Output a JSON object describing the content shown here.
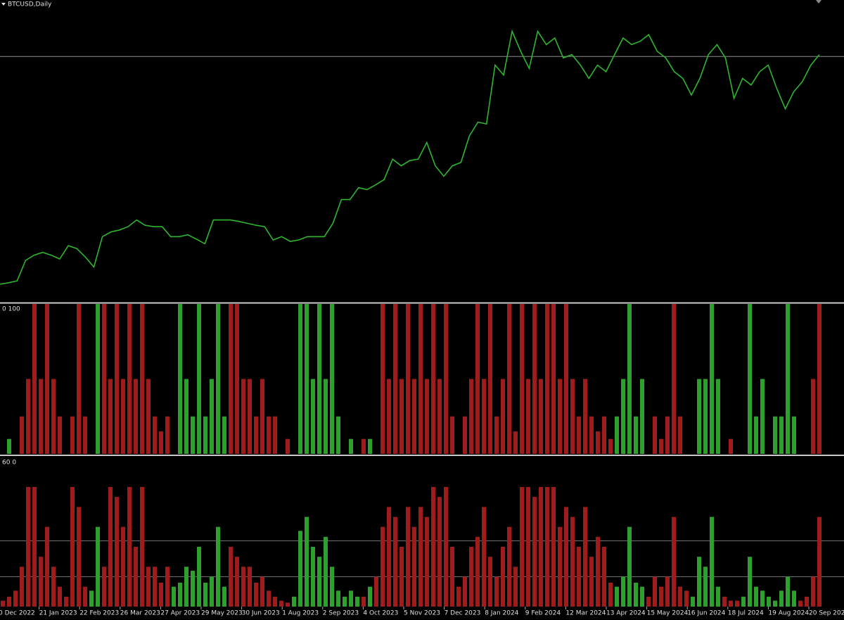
{
  "time_axis": [
    "0 Dec 2022",
    "21 Jan 2023",
    "22 Feb 2023",
    "26 Mar 2023",
    "27 Apr 2023",
    "29 May 2023",
    "30 Jun 2023",
    "1 Aug 2023",
    "2 Sep 2023",
    "4 Oct 2023",
    "5 Nov 2023",
    "7 Dec 2023",
    "8 Jan 2024",
    "9 Feb 2024",
    "12 Mar 2024",
    "13 Apr 2024",
    "15 May 2024",
    "16 Jun 2024",
    "18 Jul 2024",
    "19 Aug 2024",
    "20 Sep 2024"
  ],
  "chart_data": [
    {
      "type": "line",
      "title": "BTCUSD,Daily",
      "color": "#2fb52f",
      "ylim": [
        15000,
        76000
      ],
      "hline": 65000,
      "values": [
        17100,
        17400,
        17800,
        22100,
        23200,
        23800,
        23200,
        22400,
        25200,
        24600,
        22800,
        20700,
        27100,
        28100,
        28500,
        29200,
        30600,
        29500,
        29200,
        29200,
        27100,
        27100,
        27500,
        26600,
        25600,
        30600,
        30600,
        30600,
        30300,
        29900,
        29500,
        29200,
        26400,
        27100,
        26100,
        26400,
        27100,
        27100,
        27100,
        29900,
        34900,
        34900,
        37400,
        37000,
        38000,
        39100,
        43400,
        42000,
        43100,
        43400,
        46900,
        42000,
        39800,
        42000,
        42700,
        48300,
        51200,
        50800,
        63200,
        61100,
        70300,
        66100,
        62500,
        70300,
        67500,
        68900,
        64700,
        65400,
        63200,
        60400,
        63200,
        61800,
        65400,
        68900,
        67500,
        68200,
        69600,
        66100,
        64700,
        61800,
        60400,
        56900,
        60400,
        65400,
        67500,
        64700,
        56200,
        60400,
        59000,
        61800,
        63200,
        58300,
        54000,
        57600,
        59700,
        63200,
        65400
      ]
    },
    {
      "type": "bar",
      "label": "0 100",
      "ylim": [
        0,
        100
      ],
      "series": [
        {
          "color": "#2ea02e",
          "values": [
            null,
            10,
            null,
            null,
            null,
            null,
            null,
            null,
            null,
            null,
            null,
            null,
            null,
            null,
            null,
            100,
            null,
            null,
            null,
            null,
            null,
            null,
            null,
            null,
            null,
            null,
            null,
            null,
            100,
            50,
            25,
            100,
            25,
            50,
            100,
            25,
            null,
            null,
            null,
            null,
            null,
            null,
            null,
            null,
            null,
            null,
            null,
            100,
            100,
            50,
            100,
            50,
            100,
            25,
            null,
            10,
            null,
            null,
            10,
            null,
            null,
            null,
            null,
            null,
            null,
            null,
            null,
            null,
            null,
            null,
            null,
            null,
            null,
            null,
            null,
            null,
            null,
            null,
            null,
            null,
            null,
            null,
            null,
            null,
            null,
            null,
            null,
            null,
            null,
            null,
            null,
            null,
            null,
            null,
            null,
            null,
            null,
            25,
            50,
            100,
            25,
            50,
            null,
            null,
            null,
            null,
            null,
            null,
            null,
            null,
            50,
            50,
            100,
            50,
            null,
            null,
            null,
            null,
            100,
            25,
            50,
            null,
            25,
            25,
            100,
            25,
            null,
            null,
            null,
            null
          ]
        },
        {
          "color": "#9e1c1c",
          "values": [
            null,
            null,
            null,
            25,
            50,
            100,
            50,
            100,
            50,
            25,
            null,
            25,
            100,
            25,
            null,
            null,
            100,
            50,
            100,
            50,
            100,
            50,
            100,
            50,
            25,
            15,
            25,
            null,
            null,
            null,
            null,
            null,
            null,
            null,
            null,
            null,
            100,
            100,
            50,
            50,
            25,
            50,
            25,
            25,
            null,
            10,
            null,
            null,
            null,
            null,
            null,
            null,
            null,
            null,
            null,
            null,
            null,
            10,
            null,
            null,
            100,
            50,
            100,
            50,
            100,
            50,
            100,
            50,
            100,
            50,
            100,
            25,
            null,
            25,
            50,
            100,
            50,
            100,
            25,
            50,
            100,
            15,
            100,
            50,
            100,
            50,
            100,
            100,
            50,
            100,
            50,
            25,
            50,
            25,
            15,
            25,
            10,
            null,
            null,
            null,
            null,
            null,
            null,
            25,
            10,
            25,
            100,
            25,
            null,
            null,
            null,
            null,
            null,
            null,
            null,
            10,
            null,
            null,
            null,
            null,
            null,
            null,
            null,
            null,
            null,
            null,
            null,
            null,
            50,
            100
          ]
        }
      ]
    },
    {
      "type": "bar",
      "label": "60 0",
      "ylim": [
        0,
        60
      ],
      "levels": [
        33,
        15
      ],
      "series": [
        {
          "color": "#2ea02e",
          "values": [
            null,
            null,
            null,
            null,
            null,
            null,
            null,
            null,
            null,
            null,
            null,
            null,
            null,
            null,
            8,
            40,
            null,
            null,
            null,
            null,
            null,
            null,
            null,
            null,
            null,
            null,
            null,
            10,
            12,
            20,
            18,
            30,
            12,
            15,
            40,
            10,
            null,
            null,
            null,
            null,
            null,
            null,
            null,
            null,
            null,
            null,
            5,
            38,
            45,
            30,
            25,
            35,
            20,
            8,
            5,
            8,
            5,
            null,
            10,
            null,
            null,
            null,
            null,
            null,
            null,
            null,
            null,
            null,
            null,
            null,
            null,
            null,
            null,
            null,
            null,
            null,
            null,
            null,
            null,
            null,
            null,
            null,
            null,
            null,
            null,
            null,
            null,
            null,
            null,
            null,
            null,
            null,
            null,
            null,
            null,
            null,
            null,
            10,
            15,
            40,
            12,
            10,
            null,
            null,
            null,
            null,
            null,
            null,
            null,
            5,
            25,
            20,
            45,
            10,
            null,
            null,
            null,
            5,
            25,
            10,
            8,
            5,
            3,
            8,
            15,
            8,
            null,
            null,
            null,
            null
          ]
        },
        {
          "color": "#9e1c1c",
          "values": [
            3,
            5,
            8,
            20,
            60,
            60,
            25,
            40,
            20,
            10,
            5,
            60,
            50,
            10,
            null,
            null,
            20,
            60,
            55,
            40,
            60,
            30,
            60,
            20,
            20,
            12,
            20,
            null,
            null,
            null,
            null,
            null,
            null,
            null,
            null,
            null,
            30,
            25,
            20,
            20,
            12,
            15,
            8,
            5,
            3,
            2,
            null,
            null,
            null,
            null,
            null,
            null,
            null,
            null,
            null,
            null,
            null,
            5,
            null,
            15,
            40,
            50,
            45,
            30,
            50,
            40,
            50,
            45,
            60,
            55,
            60,
            30,
            10,
            15,
            30,
            35,
            50,
            25,
            15,
            30,
            40,
            20,
            60,
            60,
            55,
            60,
            60,
            60,
            40,
            50,
            45,
            30,
            50,
            25,
            35,
            30,
            12,
            null,
            null,
            null,
            null,
            null,
            5,
            15,
            10,
            15,
            45,
            10,
            8,
            null,
            null,
            null,
            null,
            null,
            5,
            3,
            3,
            null,
            null,
            null,
            null,
            null,
            null,
            null,
            null,
            null,
            3,
            5,
            15,
            45
          ]
        }
      ]
    }
  ]
}
